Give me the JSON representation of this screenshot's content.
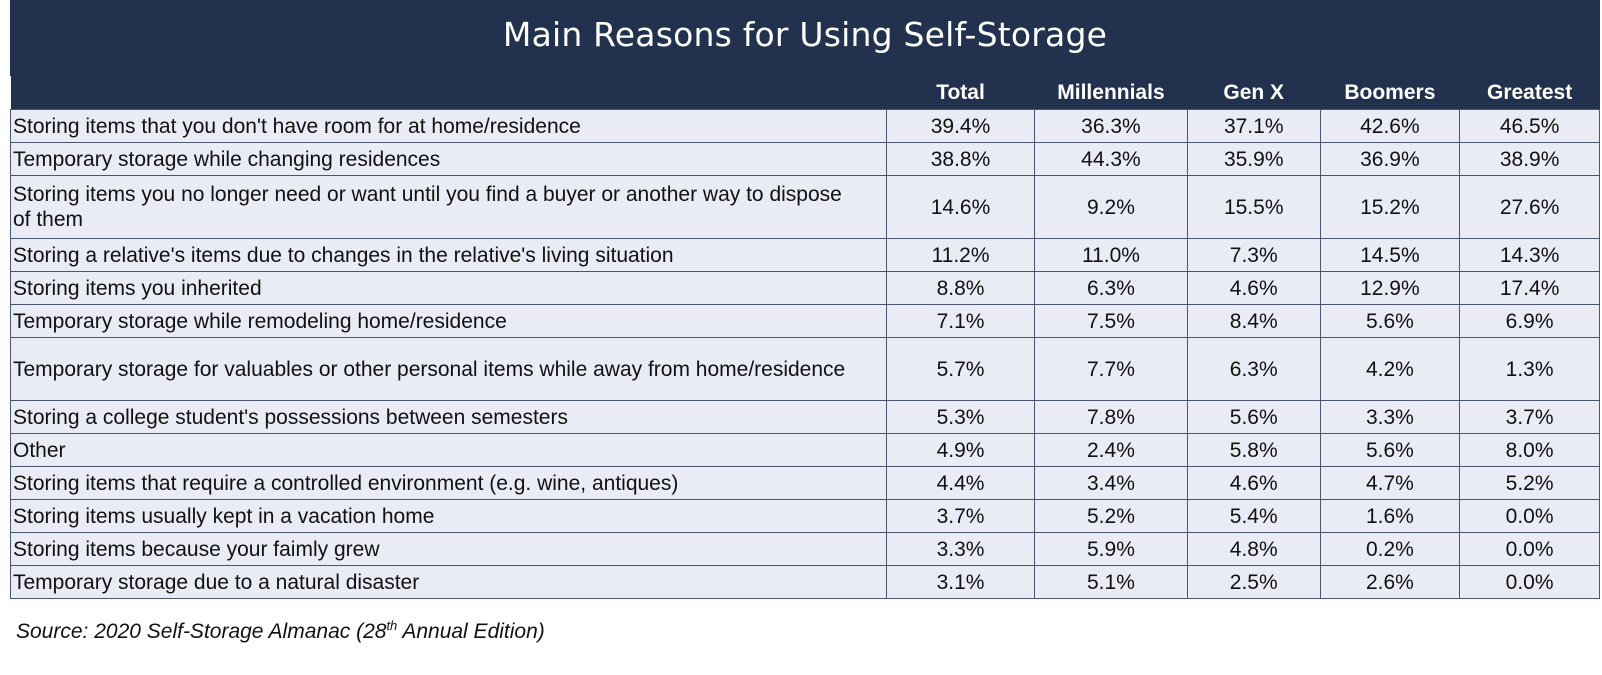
{
  "chart_data": {
    "type": "table",
    "title": "Main Reasons for Using Self-Storage",
    "columns": [
      "",
      "Total",
      "Millennials",
      "Gen X",
      "Boomers",
      "Greatest"
    ],
    "rows": [
      {
        "label": "Storing items that you don't have room for at home/residence",
        "values": [
          "39.4%",
          "36.3%",
          "37.1%",
          "42.6%",
          "46.5%"
        ]
      },
      {
        "label": "Temporary storage while changing residences",
        "values": [
          "38.8%",
          "44.3%",
          "35.9%",
          "36.9%",
          "38.9%"
        ]
      },
      {
        "label": "Storing items you no longer need or want until you find a buyer or another way to dispose of them",
        "values": [
          "14.6%",
          "9.2%",
          "15.5%",
          "15.2%",
          "27.6%"
        ]
      },
      {
        "label": "Storing a relative's items due to changes in the relative's living situation",
        "values": [
          "11.2%",
          "11.0%",
          "7.3%",
          "14.5%",
          "14.3%"
        ]
      },
      {
        "label": "Storing items you inherited",
        "values": [
          "8.8%",
          "6.3%",
          "4.6%",
          "12.9%",
          "17.4%"
        ]
      },
      {
        "label": "Temporary storage while remodeling home/residence",
        "values": [
          "7.1%",
          "7.5%",
          "8.4%",
          "5.6%",
          "6.9%"
        ]
      },
      {
        "label": "Temporary storage for valuables or other personal items while away from home/residence",
        "values": [
          "5.7%",
          "7.7%",
          "6.3%",
          "4.2%",
          "1.3%"
        ]
      },
      {
        "label": "Storing a college student's possessions between semesters",
        "values": [
          "5.3%",
          "7.8%",
          "5.6%",
          "3.3%",
          "3.7%"
        ]
      },
      {
        "label": "Other",
        "values": [
          "4.9%",
          "2.4%",
          "5.8%",
          "5.6%",
          "8.0%"
        ]
      },
      {
        "label": "Storing items that require a controlled environment (e.g. wine, antiques)",
        "values": [
          "4.4%",
          "3.4%",
          "4.6%",
          "4.7%",
          "5.2%"
        ]
      },
      {
        "label": "Storing items usually kept in a vacation home",
        "values": [
          "3.7%",
          "5.2%",
          "5.4%",
          "1.6%",
          "0.0%"
        ]
      },
      {
        "label": "Storing items because your faimly grew",
        "values": [
          "3.3%",
          "5.9%",
          "4.8%",
          "0.2%",
          "0.0%"
        ]
      },
      {
        "label": "Temporary storage due to a natural disaster",
        "values": [
          "3.1%",
          "5.1%",
          "2.5%",
          "2.6%",
          "0.0%"
        ]
      }
    ],
    "header_color": "#22324e",
    "cell_color": "#e9ebf5"
  },
  "source": {
    "prefix": "Source: 2020 Self-Storage Almanac (28",
    "superscript": "th",
    "suffix": " Annual Edition)"
  }
}
